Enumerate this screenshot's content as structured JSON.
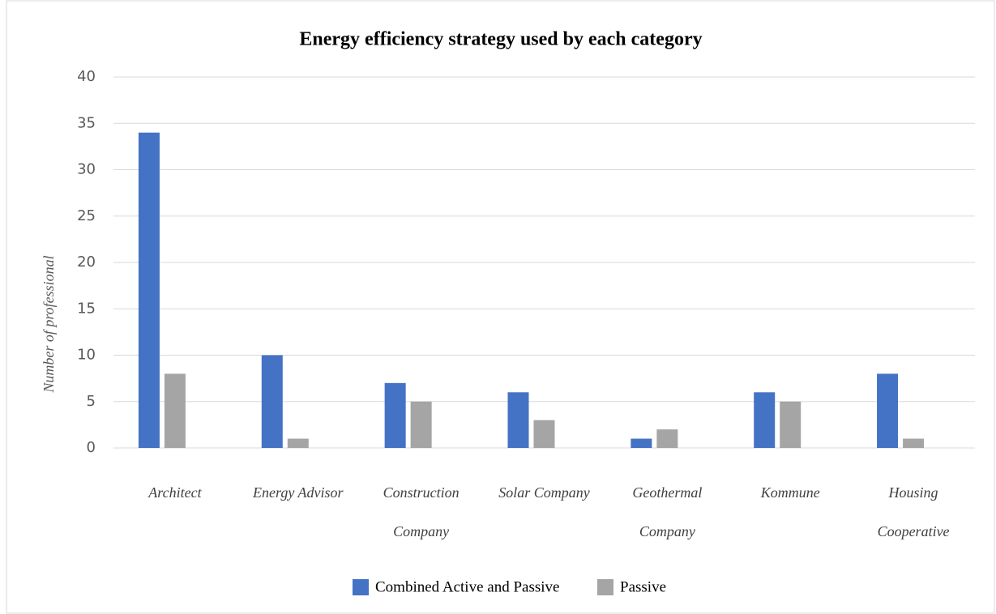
{
  "chart_data": {
    "type": "bar",
    "title": "Energy efficiency strategy used by each category",
    "y_label": "Number of professional",
    "categories": [
      "Architect",
      "Energy Advisor",
      "Construction Company",
      "Solar Company",
      "Geothermal Company",
      "Kommune",
      "Housing Cooperative"
    ],
    "series": [
      {
        "name": "Combined Active and Passive",
        "color": "#4472c4",
        "values": [
          34,
          10,
          7,
          6,
          1,
          6,
          8
        ]
      },
      {
        "name": "Passive",
        "color": "#a5a5a5",
        "values": [
          8,
          1,
          5,
          3,
          2,
          5,
          1
        ]
      }
    ],
    "ylim": [
      0,
      40
    ],
    "yticks": [
      0,
      5,
      10,
      15,
      20,
      25,
      30,
      35,
      40
    ],
    "grid": true,
    "legend": "bottom"
  }
}
